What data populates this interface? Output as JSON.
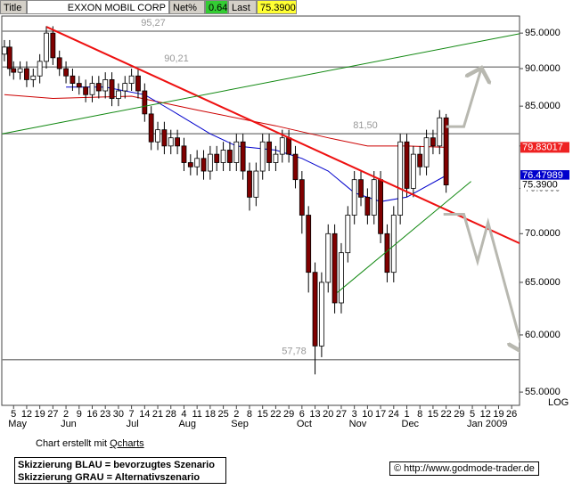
{
  "header": {
    "title_label": "Title",
    "name": "EXXON MOBIL CORP",
    "net_label": "Net%",
    "net": "0.64",
    "last_label": "Last",
    "last": "75.3900"
  },
  "chart_data": {
    "type": "candlestick",
    "log": true,
    "xlim": [
      -0.9,
      38.6
    ],
    "ylim": [
      53.9,
      97.5
    ],
    "yticks": [
      {
        "value": 95,
        "label": "95.0000"
      },
      {
        "value": 90,
        "label": "90.0000"
      },
      {
        "value": 85,
        "label": "85.0000"
      },
      {
        "value": 80,
        "label": "80.0000"
      },
      {
        "value": 75,
        "label": "75.0000"
      },
      {
        "value": 70,
        "label": "70.0000"
      },
      {
        "value": 65,
        "label": "65.0000"
      },
      {
        "value": 60,
        "label": "60.0000"
      },
      {
        "value": 55,
        "label": "55.0000"
      }
    ],
    "scale_label": "LOG",
    "xticks": [
      {
        "value": 0,
        "label": "5"
      },
      {
        "value": 1,
        "label": "12"
      },
      {
        "value": 2,
        "label": "19"
      },
      {
        "value": 3,
        "label": "27"
      },
      {
        "value": 4,
        "label": "2"
      },
      {
        "value": 5,
        "label": "9"
      },
      {
        "value": 6,
        "label": "16"
      },
      {
        "value": 7,
        "label": "23"
      },
      {
        "value": 8,
        "label": "30"
      },
      {
        "value": 9,
        "label": "7"
      },
      {
        "value": 10,
        "label": "14"
      },
      {
        "value": 11,
        "label": "21"
      },
      {
        "value": 12,
        "label": "28"
      },
      {
        "value": 13,
        "label": "4"
      },
      {
        "value": 14,
        "label": "11"
      },
      {
        "value": 15,
        "label": "18"
      },
      {
        "value": 16,
        "label": "25"
      },
      {
        "value": 17,
        "label": "2"
      },
      {
        "value": 18,
        "label": "8"
      },
      {
        "value": 19,
        "label": "15"
      },
      {
        "value": 20,
        "label": "22"
      },
      {
        "value": 21,
        "label": "29"
      },
      {
        "value": 22,
        "label": "6"
      },
      {
        "value": 23,
        "label": "13"
      },
      {
        "value": 24,
        "label": "20"
      },
      {
        "value": 25,
        "label": "27"
      },
      {
        "value": 26,
        "label": "3"
      },
      {
        "value": 27,
        "label": "10"
      },
      {
        "value": 28,
        "label": "17"
      },
      {
        "value": 29,
        "label": "24"
      },
      {
        "value": 30,
        "label": "1"
      },
      {
        "value": 31,
        "label": "8"
      },
      {
        "value": 32,
        "label": "15"
      },
      {
        "value": 33,
        "label": "22"
      },
      {
        "value": 34,
        "label": "29"
      },
      {
        "value": 35,
        "label": "5"
      },
      {
        "value": 36,
        "label": "12"
      },
      {
        "value": 37,
        "label": "19"
      },
      {
        "value": 38,
        "label": "26"
      }
    ],
    "months": [
      {
        "value": 0,
        "label": "May"
      },
      {
        "value": 4,
        "label": "Jun"
      },
      {
        "value": 9,
        "label": "Jul"
      },
      {
        "value": 13,
        "label": "Aug"
      },
      {
        "value": 17,
        "label": "Sep"
      },
      {
        "value": 22,
        "label": "Oct"
      },
      {
        "value": 26,
        "label": "Nov"
      },
      {
        "value": 30,
        "label": "Dec"
      },
      {
        "value": 35,
        "label": "Jan 2009"
      }
    ],
    "x": [
      -0.7,
      -0.3,
      0,
      0.5,
      1,
      1.5,
      2,
      2.5,
      3,
      3.5,
      4,
      4.5,
      5,
      5.5,
      6,
      6.5,
      7,
      7.5,
      8,
      8.5,
      9,
      9.5,
      10,
      10.5,
      11,
      11.5,
      12,
      12.5,
      13,
      13.5,
      14,
      14.5,
      15,
      15.5,
      16,
      16.5,
      17,
      17.5,
      18,
      18.5,
      19,
      19.5,
      20,
      20.5,
      21,
      21.5,
      22,
      22.5,
      23,
      23.5,
      24,
      24.5,
      25,
      25.5,
      26,
      26.5,
      27,
      27.5,
      28,
      28.5,
      29,
      29.5,
      30,
      30.5,
      31,
      31.5,
      32,
      32.5,
      33
    ],
    "open": [
      92,
      93,
      90,
      89.5,
      90,
      88.5,
      89,
      91,
      95,
      91.5,
      90,
      89,
      88,
      87.5,
      86.5,
      88,
      87,
      88.5,
      86,
      87,
      88,
      89,
      87,
      84,
      80.5,
      82,
      80,
      81,
      80,
      78,
      77.5,
      78.5,
      77,
      79,
      78,
      79.5,
      78,
      80.5,
      77,
      74,
      77,
      80.5,
      78,
      79,
      81,
      79,
      76,
      72,
      66,
      59,
      65,
      70,
      63,
      68,
      72,
      76,
      74,
      72,
      76,
      70,
      66,
      72,
      80.5,
      75,
      79,
      77.5,
      81,
      80,
      83.5
    ],
    "high": [
      94,
      94,
      91,
      91,
      91,
      90,
      92,
      96,
      96,
      92.5,
      91,
      90,
      89,
      88.5,
      89,
      89,
      89.5,
      89.5,
      88,
      89,
      90,
      90,
      88,
      85,
      83,
      83,
      82,
      82,
      81,
      79,
      79.5,
      79.5,
      80,
      80,
      80.5,
      80.5,
      81.5,
      81.5,
      78,
      78,
      81.5,
      81.5,
      80,
      82,
      82,
      80,
      77,
      73,
      67,
      66,
      71,
      71,
      69,
      73,
      77,
      77,
      75,
      77,
      77,
      71,
      73,
      81.5,
      81.5,
      80,
      80,
      82,
      82,
      84.5,
      84
    ],
    "low": [
      91,
      89,
      88.5,
      88.5,
      87.5,
      87.5,
      88,
      90,
      90.5,
      89,
      88,
      87,
      86.5,
      85.5,
      85.5,
      86,
      86,
      85,
      85,
      86,
      87,
      86,
      83,
      79.5,
      79.5,
      79,
      79,
      79,
      77,
      76.5,
      76.5,
      76,
      76,
      77,
      77,
      77,
      77,
      76,
      72.5,
      73,
      76,
      77,
      77,
      78,
      78,
      75,
      70,
      64,
      56.5,
      58,
      64,
      62,
      62,
      67,
      71,
      73,
      71,
      71,
      69,
      65,
      65,
      71,
      74,
      74,
      76.5,
      76.5,
      79,
      79,
      74.5
    ],
    "close": [
      93,
      90,
      89.5,
      90,
      88.5,
      89,
      91,
      95,
      91.5,
      90,
      89,
      88,
      87.5,
      86.5,
      88,
      87,
      88.5,
      86,
      87,
      88,
      89,
      87,
      84,
      80.5,
      82,
      80,
      81,
      80,
      78,
      77.5,
      78.5,
      77,
      79,
      78,
      79.5,
      78,
      80.5,
      77,
      74,
      77,
      80.5,
      78,
      79,
      81,
      79,
      76,
      72,
      66,
      59,
      65,
      70,
      63,
      68,
      72,
      76,
      74,
      72,
      76,
      70,
      66,
      72,
      80.5,
      75,
      79,
      77.5,
      81,
      80,
      83.5,
      75.39
    ],
    "up_color": "#ffffff",
    "down_color": "#800000",
    "moving_averages": [
      {
        "color": "#cc0000",
        "x": [
          -0.7,
          3,
          9,
          14,
          20,
          24,
          27,
          30,
          33
        ],
        "values": [
          86.5,
          86,
          86.3,
          84.5,
          82.5,
          81,
          80,
          80,
          79.83
        ]
      },
      {
        "color": "#0000cc",
        "x": [
          4,
          7,
          10,
          12,
          15,
          17,
          20,
          22,
          24,
          26,
          28,
          30,
          33
        ],
        "values": [
          87.5,
          87.5,
          86.5,
          84.5,
          81.5,
          80,
          79.5,
          78.5,
          77,
          74.5,
          73.5,
          74,
          76.48
        ]
      }
    ],
    "trendlines": [
      {
        "color": "#ee1111",
        "width": 2,
        "x": [
          2.52,
          38.9
        ],
        "values": [
          95.9,
          68.8
        ]
      },
      {
        "color": "#118811",
        "width": 1,
        "x": [
          -0.88,
          38.6
        ],
        "values": [
          81.5,
          94.9
        ]
      },
      {
        "color": "#118811",
        "width": 1,
        "x": [
          24.7,
          34.9
        ],
        "values": [
          64.0,
          75.8
        ]
      }
    ],
    "levels": [
      {
        "value": 95.27,
        "label": "95,27"
      },
      {
        "value": 90.21,
        "label": "90,21"
      },
      {
        "value": 81.5,
        "label": "81,50"
      },
      {
        "value": 57.78,
        "label": "57,78"
      }
    ],
    "scenarios": [
      {
        "color": "#b8b8b0",
        "x": [
          33,
          34.35,
          35.7
        ],
        "values": [
          82.4,
          82.4,
          90.1
        ]
      },
      {
        "color": "#b8b8b0",
        "x": [
          32.8,
          34.35,
          35.4,
          36.2,
          38.9
        ],
        "values": [
          72.1,
          72.1,
          67.1,
          71.2,
          58.4
        ]
      }
    ],
    "price_tags": [
      {
        "value": 79.83017,
        "color": "#ee2222",
        "text_color": "#ffffff"
      },
      {
        "value": 76.47989,
        "color": "#0000cc",
        "text_color": "#ffffff"
      },
      {
        "value": 75.39,
        "label": "75.3900",
        "color": "#ffffff",
        "text_color": "#000000"
      }
    ]
  },
  "footer": {
    "credit": "Chart erstellt mit",
    "tool": "Qcharts",
    "legend_blue": "Skizzierung BLAU = bevorzugtes Szenario",
    "legend_grey": "Skizzierung GRAU = Alternativszenario",
    "source": "© http://www.godmode-trader.de"
  }
}
